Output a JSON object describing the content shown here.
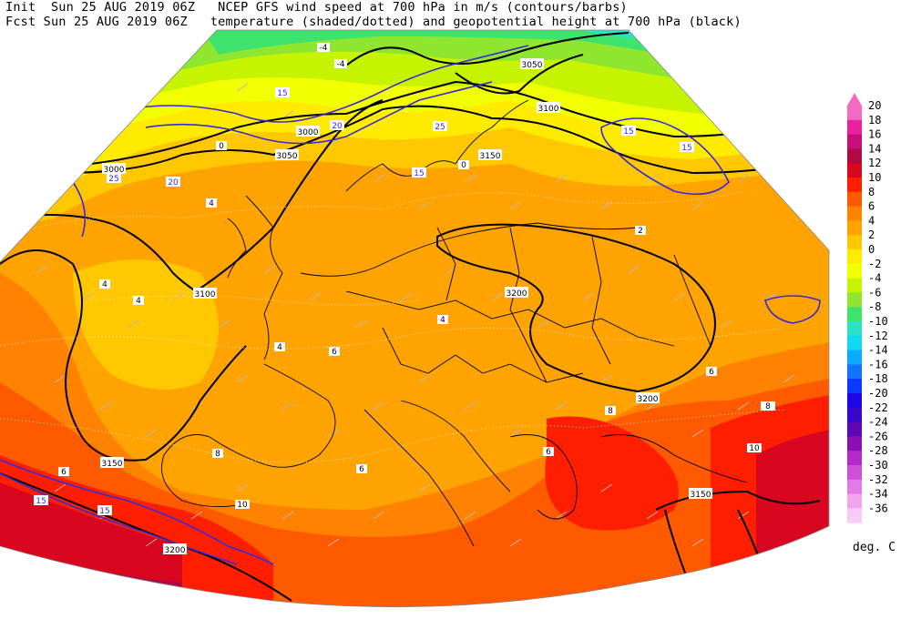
{
  "header": {
    "line1": "Init  Sun 25 AUG 2019 06Z   NCEP GFS wind speed at 700 hPa in m/s (contours/barbs)",
    "line2": "Fcst Sun 25 AUG 2019 06Z   temperature (shaded/dotted) and geopotential height at 700 hPa (black)"
  },
  "colorbar": {
    "unit": "deg. C",
    "levels": [
      {
        "value": "20",
        "color": "#f36ac5"
      },
      {
        "value": "18",
        "color": "#e8229f"
      },
      {
        "value": "16",
        "color": "#c70f7a"
      },
      {
        "value": "14",
        "color": "#b00a45"
      },
      {
        "value": "12",
        "color": "#d8061e"
      },
      {
        "value": "10",
        "color": "#ff1f00"
      },
      {
        "value": "8",
        "color": "#ff5a00"
      },
      {
        "value": "6",
        "color": "#ff8200"
      },
      {
        "value": "4",
        "color": "#ffa300"
      },
      {
        "value": "2",
        "color": "#ffc800"
      },
      {
        "value": "0",
        "color": "#ffeb00"
      },
      {
        "value": "-2",
        "color": "#f1ff00"
      },
      {
        "value": "-4",
        "color": "#c6f300"
      },
      {
        "value": "-6",
        "color": "#8ee62e"
      },
      {
        "value": "-8",
        "color": "#3ee36e"
      },
      {
        "value": "-10",
        "color": "#2ae3c6"
      },
      {
        "value": "-12",
        "color": "#10d8f0"
      },
      {
        "value": "-14",
        "color": "#0aaaff"
      },
      {
        "value": "-16",
        "color": "#1273ff"
      },
      {
        "value": "-18",
        "color": "#0b38ff"
      },
      {
        "value": "-20",
        "color": "#1f06e6"
      },
      {
        "value": "-22",
        "color": "#3a06cc"
      },
      {
        "value": "-24",
        "color": "#6007b5"
      },
      {
        "value": "-26",
        "color": "#8a10b5"
      },
      {
        "value": "-28",
        "color": "#b32ac8"
      },
      {
        "value": "-30",
        "color": "#cf4fd9"
      },
      {
        "value": "-32",
        "color": "#e27ae5"
      },
      {
        "value": "-34",
        "color": "#f0a4ee"
      },
      {
        "value": "-36",
        "color": "#f8caf6"
      }
    ]
  },
  "map": {
    "height_labels": [
      "3050",
      "3100",
      "3000",
      "3050",
      "3000",
      "3100",
      "3150",
      "3200",
      "3200",
      "3150",
      "3150",
      "3200",
      "3100",
      "3050"
    ],
    "wind_labels": [
      "15",
      "20",
      "25",
      "20",
      "15",
      "15",
      "15",
      "25",
      "15",
      "15",
      "15",
      "15",
      "15",
      "15",
      "15"
    ],
    "temp_labels": [
      "-4",
      "-4",
      "0",
      "4",
      "6",
      "4",
      "4",
      "8",
      "6",
      "10",
      "8",
      "6",
      "4",
      "2",
      "0",
      "6",
      "8",
      "4",
      "6",
      "10"
    ]
  }
}
